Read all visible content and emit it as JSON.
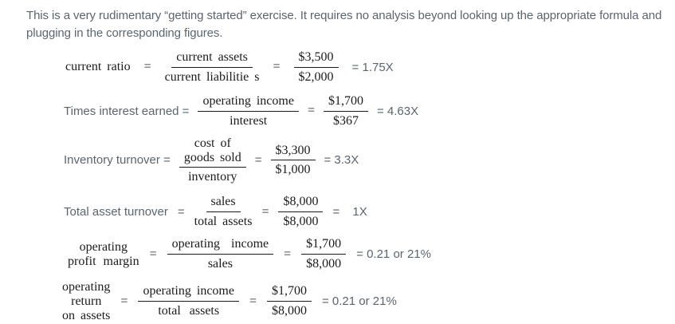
{
  "intro": "This is a very rudimentary “getting started” exercise. It requires no analysis beyond looking up the appropriate formula and plugging in the corresponding figures.",
  "colors": {
    "background": "#ffffff",
    "muted_text": "#5b656e",
    "formula_text": "#1b1b1b"
  },
  "formulas": [
    {
      "name": "current-ratio",
      "label": "current ratio",
      "label_eq": "=",
      "numerator": "current assets",
      "denominator": "current liabilitie s",
      "eq": "=",
      "value_numerator": "$3,500",
      "value_denominator": "$2,000",
      "result": "= 1.75X"
    },
    {
      "name": "times-interest-earned",
      "label": "Times interest earned =",
      "numerator": "operating income",
      "denominator": "interest",
      "eq": "=",
      "value_numerator": "$1,700",
      "value_denominator": "$367",
      "result": "= 4.63X"
    },
    {
      "name": "inventory-turnover",
      "label": "Inventory turnover =",
      "numerator_line1": "cost of",
      "numerator_line2": "goods sold",
      "denominator": "inventory",
      "eq": "=",
      "value_numerator": "$3,300",
      "value_denominator": "$1,000",
      "result": "= 3.3X"
    },
    {
      "name": "total-asset-turnover",
      "label": "Total asset turnover",
      "label_eq": "=",
      "numerator": "sales",
      "denominator": "total assets",
      "eq": "=",
      "value_numerator": "$8,000",
      "value_denominator": "$8,000",
      "result": "= 1X"
    },
    {
      "name": "operating-profit-margin",
      "label_line1": "operating",
      "label_line2": "profit margin",
      "label_eq": "=",
      "numerator": "operating income",
      "denominator": "sales",
      "eq": "=",
      "value_numerator": "$1,700",
      "value_denominator": "$8,000",
      "result": "= 0.21 or 21%"
    },
    {
      "name": "operating-return-on-assets",
      "label_line1": "operating",
      "label_line2": "return",
      "label_line3": "on assets",
      "label_eq": "=",
      "numerator": "operating income",
      "denominator": "total assets",
      "eq": "=",
      "value_numerator": "$1,700",
      "value_denominator": "$8,000",
      "result": "= 0.21 or 21%"
    }
  ]
}
